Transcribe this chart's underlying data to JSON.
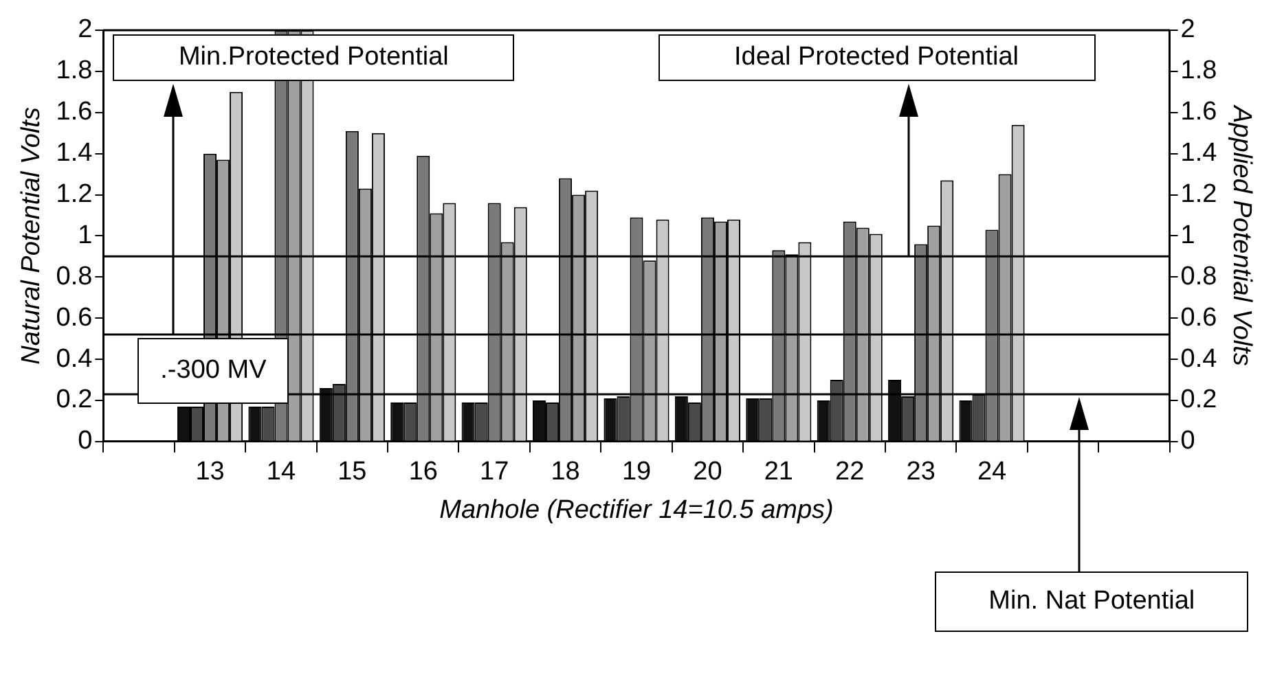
{
  "chart_data": {
    "type": "bar",
    "categories": [
      null,
      "13",
      "14",
      "15",
      "16",
      "17",
      "18",
      "19",
      "20",
      "21",
      "22",
      "23",
      "24",
      null,
      null
    ],
    "series": [
      {
        "color": "#111111",
        "values": [
          null,
          0.17,
          0.17,
          0.26,
          0.19,
          0.19,
          0.2,
          0.21,
          0.22,
          0.21,
          0.2,
          0.3,
          0.2,
          null,
          null
        ]
      },
      {
        "color": "#4a4a4a",
        "values": [
          null,
          0.17,
          0.17,
          0.28,
          0.19,
          0.19,
          0.19,
          0.22,
          0.19,
          0.21,
          0.3,
          0.22,
          0.23,
          null,
          null
        ]
      },
      {
        "color": "#7a7a7a",
        "values": [
          null,
          1.4,
          2,
          1.51,
          1.39,
          1.16,
          1.28,
          1.09,
          1.09,
          0.93,
          1.07,
          0.96,
          1.03,
          null,
          null
        ]
      },
      {
        "color": "#a0a0a0",
        "values": [
          null,
          1.37,
          2,
          1.23,
          1.11,
          0.97,
          1.2,
          0.88,
          1.07,
          0.91,
          1.04,
          1.05,
          1.3,
          null,
          null
        ]
      },
      {
        "color": "#c8c8c8",
        "values": [
          null,
          1.7,
          2,
          1.5,
          1.16,
          1.14,
          1.22,
          1.08,
          1.08,
          0.97,
          1.01,
          1.27,
          1.54,
          null,
          null
        ]
      }
    ],
    "xlabel": "Manhole (Rectifier 14=10.5 amps)",
    "ylabel": "Natural Potential Volts",
    "y2label": "Applied Potential Volts",
    "ylim": [
      0,
      2
    ],
    "yticks": [
      0,
      0.2,
      0.4,
      0.6,
      0.8,
      1,
      1.2,
      1.4,
      1.6,
      1.8,
      2
    ],
    "y2lim": [
      0,
      2
    ],
    "y2ticks": [
      0,
      0.2,
      0.4,
      0.6,
      0.8,
      1,
      1.2,
      1.4,
      1.6,
      1.8,
      2
    ],
    "ref_lines": [
      {
        "axis": "y",
        "value": 0.9
      },
      {
        "axis": "y",
        "value": 0.52
      },
      {
        "axis": "y",
        "value": 0.23
      }
    ],
    "annotations": [
      ".-300 MV",
      "Min.Protected Potential",
      "Ideal Protected Potential",
      "Min. Nat Potential"
    ]
  }
}
